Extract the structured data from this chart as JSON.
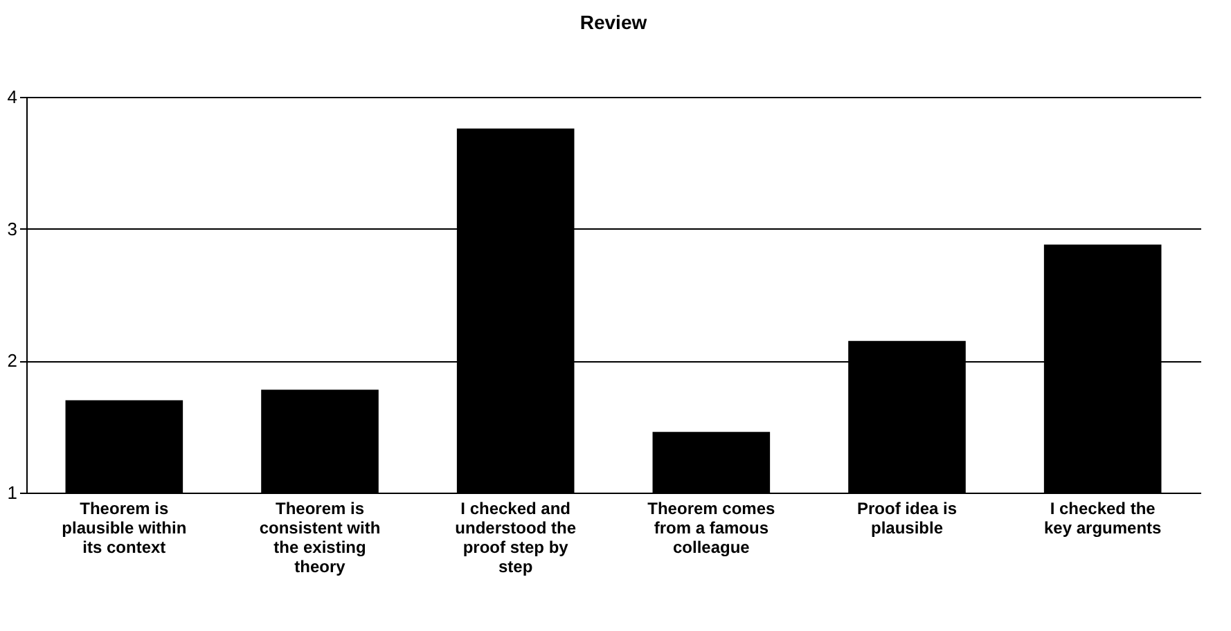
{
  "chart_data": {
    "type": "bar",
    "title": "Review",
    "categories": [
      "Theorem is plausible within its context",
      "Theorem is consistent with the existing theory",
      "I checked and understood the proof step by step",
      "Theorem comes from a famous colleague",
      "Proof idea is plausible",
      "I checked the key arguments"
    ],
    "values": [
      1.7,
      1.78,
      3.76,
      1.46,
      2.15,
      2.88
    ],
    "color": "#000000",
    "ylim": [
      1,
      4
    ],
    "yticks": [
      1,
      2,
      3,
      4
    ],
    "grid": "y"
  }
}
